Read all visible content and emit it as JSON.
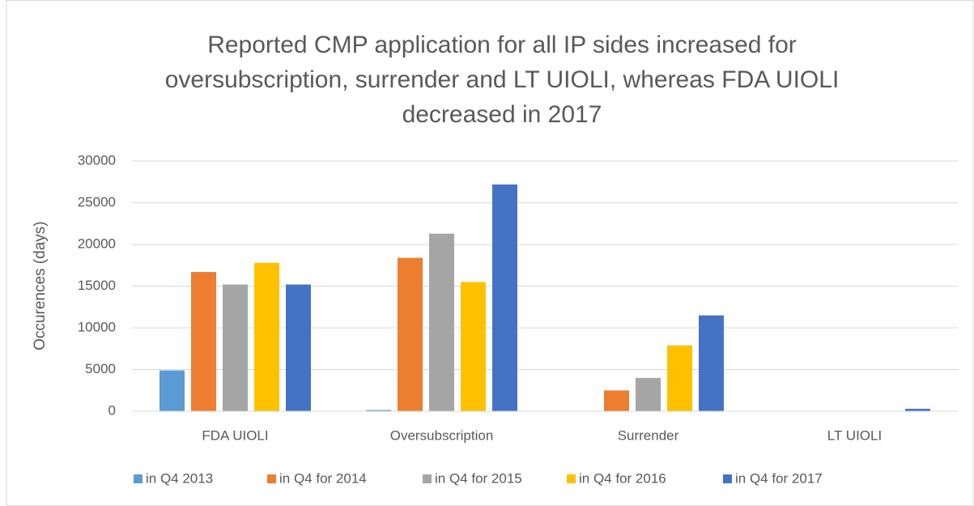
{
  "chart_data": {
    "type": "bar",
    "title": "Reported CMP application for all IP sides increased for oversubscription, surrender and LT UIOLI, whereas FDA UIOLI decreased in 2017",
    "y_label": "Occurences (days)",
    "categories": [
      "FDA UIOLI",
      "Oversubscription",
      "Surrender",
      "LT UIOLI"
    ],
    "series": [
      {
        "name": "in Q4 2013",
        "color": "#5b9bd5",
        "values": [
          4900,
          150,
          0,
          0
        ]
      },
      {
        "name": "in Q4 for 2014",
        "color": "#ed7d31",
        "values": [
          16700,
          18400,
          2500,
          0
        ]
      },
      {
        "name": "in Q4 for 2015",
        "color": "#a5a5a5",
        "values": [
          15200,
          21300,
          4000,
          0
        ]
      },
      {
        "name": "in Q4 for 2016",
        "color": "#ffc000",
        "values": [
          17800,
          15500,
          7900,
          0
        ]
      },
      {
        "name": "in Q4 for 2017",
        "color": "#4472c4",
        "values": [
          15200,
          27200,
          11500,
          300
        ]
      }
    ],
    "ylim": [
      0,
      30000
    ],
    "yticks": [
      0,
      5000,
      10000,
      15000,
      20000,
      25000,
      30000
    ],
    "grid": true,
    "legend": "bottom"
  }
}
